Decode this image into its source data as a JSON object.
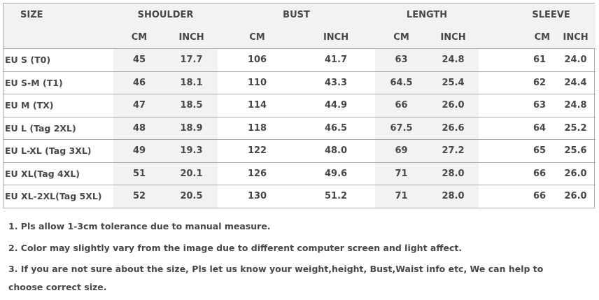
{
  "table": {
    "headers": {
      "size": "SIZE",
      "shoulder": "SHOULDER",
      "bust": "BUST",
      "length": "LENGTH",
      "sleeve": "SLEEVE",
      "cm": "CM",
      "inch": "INCH"
    },
    "rows": [
      [
        "EU S (T0)",
        "45",
        "17.7",
        "106",
        "41.7",
        "63",
        "24.8",
        "61",
        "24.0"
      ],
      [
        "EU S-M (T1)",
        "46",
        "18.1",
        "110",
        "43.3",
        "64.5",
        "25.4",
        "62",
        "24.4"
      ],
      [
        "EU M (TX)",
        "47",
        "18.5",
        "114",
        "44.9",
        "66",
        "26.0",
        "63",
        "24.8"
      ],
      [
        "EU L (Tag 2XL)",
        "48",
        "18.9",
        "118",
        "46.5",
        "67.5",
        "26.6",
        "64",
        "25.2"
      ],
      [
        "EU L-XL (Tag  3XL)",
        "49",
        "19.3",
        "122",
        "48.0",
        "69",
        "27.2",
        "65",
        "25.6"
      ],
      [
        "EU XL(Tag 4XL)",
        "51",
        "20.1",
        "126",
        "49.6",
        "71",
        "28.0",
        "66",
        "26.0"
      ],
      [
        "EU XL-2XL(Tag 5XL)",
        "52",
        "20.5",
        "130",
        "51.2",
        "71",
        "28.0",
        "66",
        "26.0"
      ]
    ]
  },
  "notes": [
    "1.  Pls allow 1-3cm tolerance due to manual measure.",
    "2.  Color may slightly vary from the image due to different computer screen and light affect.",
    "3.  If you are not sure about the size, Pls let us know your weight,height, Bust,Waist info etc, We can help to choose correct size."
  ],
  "colors": {
    "text": "#4a4646",
    "shade": "#f2f2f2",
    "border": "#a9a9a9"
  }
}
